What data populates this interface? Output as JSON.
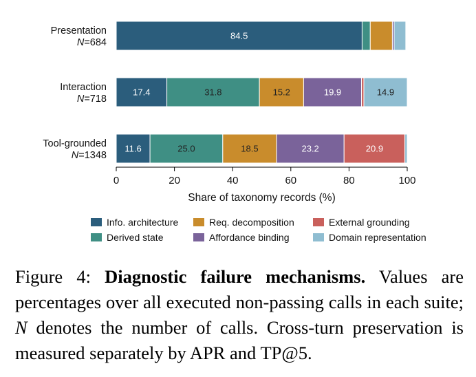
{
  "chart_data": {
    "type": "bar",
    "orientation": "horizontal",
    "stacked": true,
    "categories": [
      {
        "name": "Presentation",
        "n_label": "N=684"
      },
      {
        "name": "Interaction",
        "n_label": "N=718"
      },
      {
        "name": "Tool-grounded",
        "n_label": "N=1348"
      }
    ],
    "series": [
      {
        "name": "Info. architecture",
        "color": "#2b5d7c",
        "values": [
          84.5,
          17.4,
          11.6
        ],
        "labels": [
          "84.5",
          "17.4",
          "11.6"
        ]
      },
      {
        "name": "Derived state",
        "color": "#3f8f84",
        "values": [
          2.8,
          31.8,
          25.0
        ],
        "labels": [
          "",
          "31.8",
          "25.0"
        ]
      },
      {
        "name": "Req. decomposition",
        "color": "#c98c2c",
        "values": [
          7.6,
          15.2,
          18.5
        ],
        "labels": [
          "",
          "15.2",
          "18.5"
        ]
      },
      {
        "name": "Affordance binding",
        "color": "#7a639a",
        "values": [
          0.6,
          19.9,
          23.2
        ],
        "labels": [
          "",
          "19.9",
          "23.2"
        ]
      },
      {
        "name": "External grounding",
        "color": "#c9605c",
        "values": [
          0,
          0.8,
          20.9
        ],
        "labels": [
          "",
          "",
          "20.9"
        ]
      },
      {
        "name": "Domain representation",
        "color": "#8fbdd1",
        "values": [
          4.0,
          14.9,
          0.8
        ],
        "labels": [
          "",
          "14.9",
          ""
        ]
      }
    ],
    "xlabel": "Share of taxonomy records (%)",
    "ylabel": "",
    "xlim": [
      0,
      100
    ],
    "xticks": [
      "0",
      "20",
      "40",
      "60",
      "80",
      "100"
    ],
    "legend_position": "bottom",
    "grid": false
  },
  "caption": {
    "prefix": "Figure 4: ",
    "title": "Diagnostic failure mechanisms.",
    "body1": " Values are percentages over all executed non-passing calls in each suite; ",
    "var": "N",
    "body2": " denotes the number of calls. Cross-turn pres­erva­tion is measured separately by APR and TP@5."
  }
}
